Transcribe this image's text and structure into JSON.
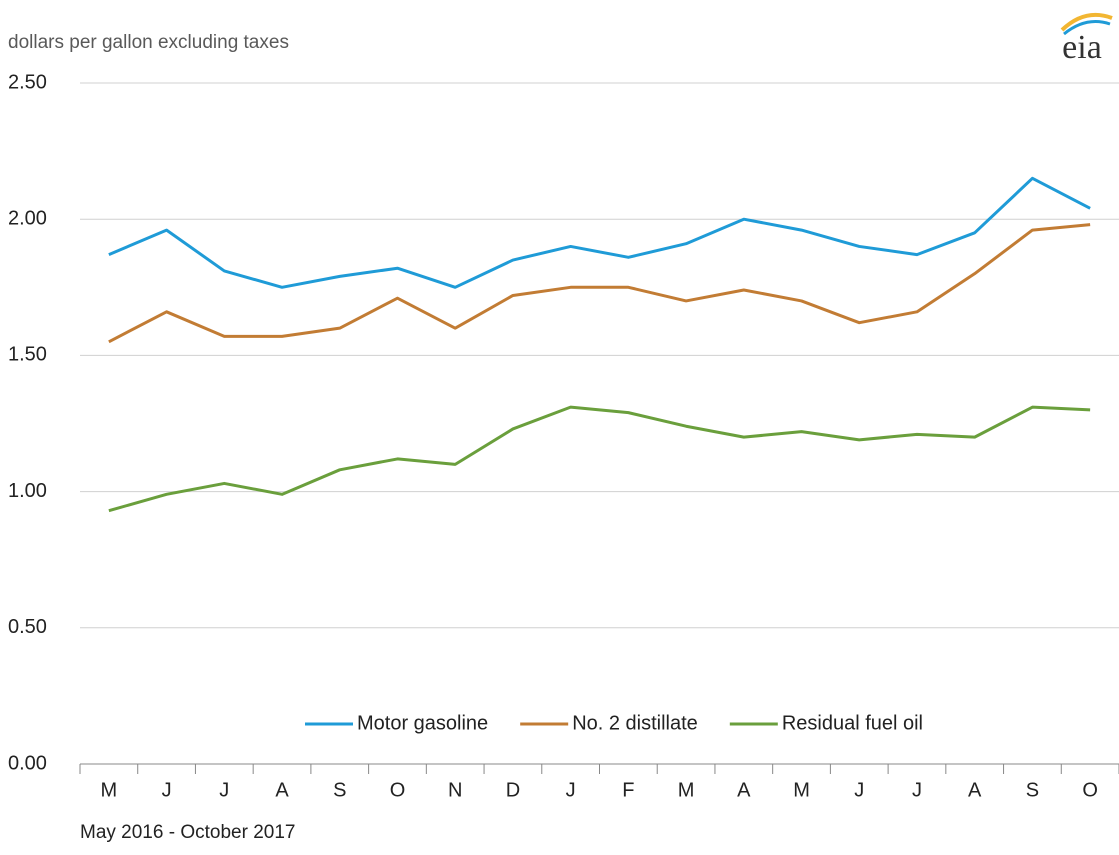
{
  "chart_data": {
    "type": "line",
    "y_label": "dollars per gallon  excluding taxes",
    "x_label": "May 2016   -   October 2017",
    "categories": [
      "M",
      "J",
      "J",
      "A",
      "S",
      "O",
      "N",
      "D",
      "J",
      "F",
      "M",
      "A",
      "M",
      "J",
      "J",
      "A",
      "S",
      "O"
    ],
    "series": [
      {
        "name": "Motor gasoline",
        "color": "#1f9bd7",
        "values": [
          1.87,
          1.96,
          1.81,
          1.75,
          1.79,
          1.82,
          1.75,
          1.85,
          1.9,
          1.86,
          1.91,
          2.0,
          1.96,
          1.9,
          1.87,
          1.95,
          2.15,
          2.04
        ]
      },
      {
        "name": "No. 2 distillate",
        "color": "#c27c34",
        "values": [
          1.55,
          1.66,
          1.57,
          1.57,
          1.6,
          1.71,
          1.6,
          1.72,
          1.75,
          1.75,
          1.7,
          1.74,
          1.7,
          1.62,
          1.66,
          1.8,
          1.96,
          1.98
        ]
      },
      {
        "name": "Residual fuel oil",
        "color": "#6a9f3c",
        "values": [
          0.93,
          0.99,
          1.03,
          0.99,
          1.08,
          1.12,
          1.1,
          1.23,
          1.31,
          1.29,
          1.24,
          1.2,
          1.22,
          1.19,
          1.21,
          1.2,
          1.31,
          1.3
        ]
      }
    ],
    "ylim": [
      0,
      2.5
    ],
    "yticks": [
      {
        "value": 0,
        "label": "0.00"
      },
      {
        "value": 0.5,
        "label": "0.50"
      },
      {
        "value": 1,
        "label": "1.00"
      },
      {
        "value": 1.5,
        "label": "1.50"
      },
      {
        "value": 2,
        "label": "2.00"
      },
      {
        "value": 2.5,
        "label": "2.50"
      }
    ],
    "grid": true,
    "legend": "bottom"
  },
  "logo": "eia"
}
